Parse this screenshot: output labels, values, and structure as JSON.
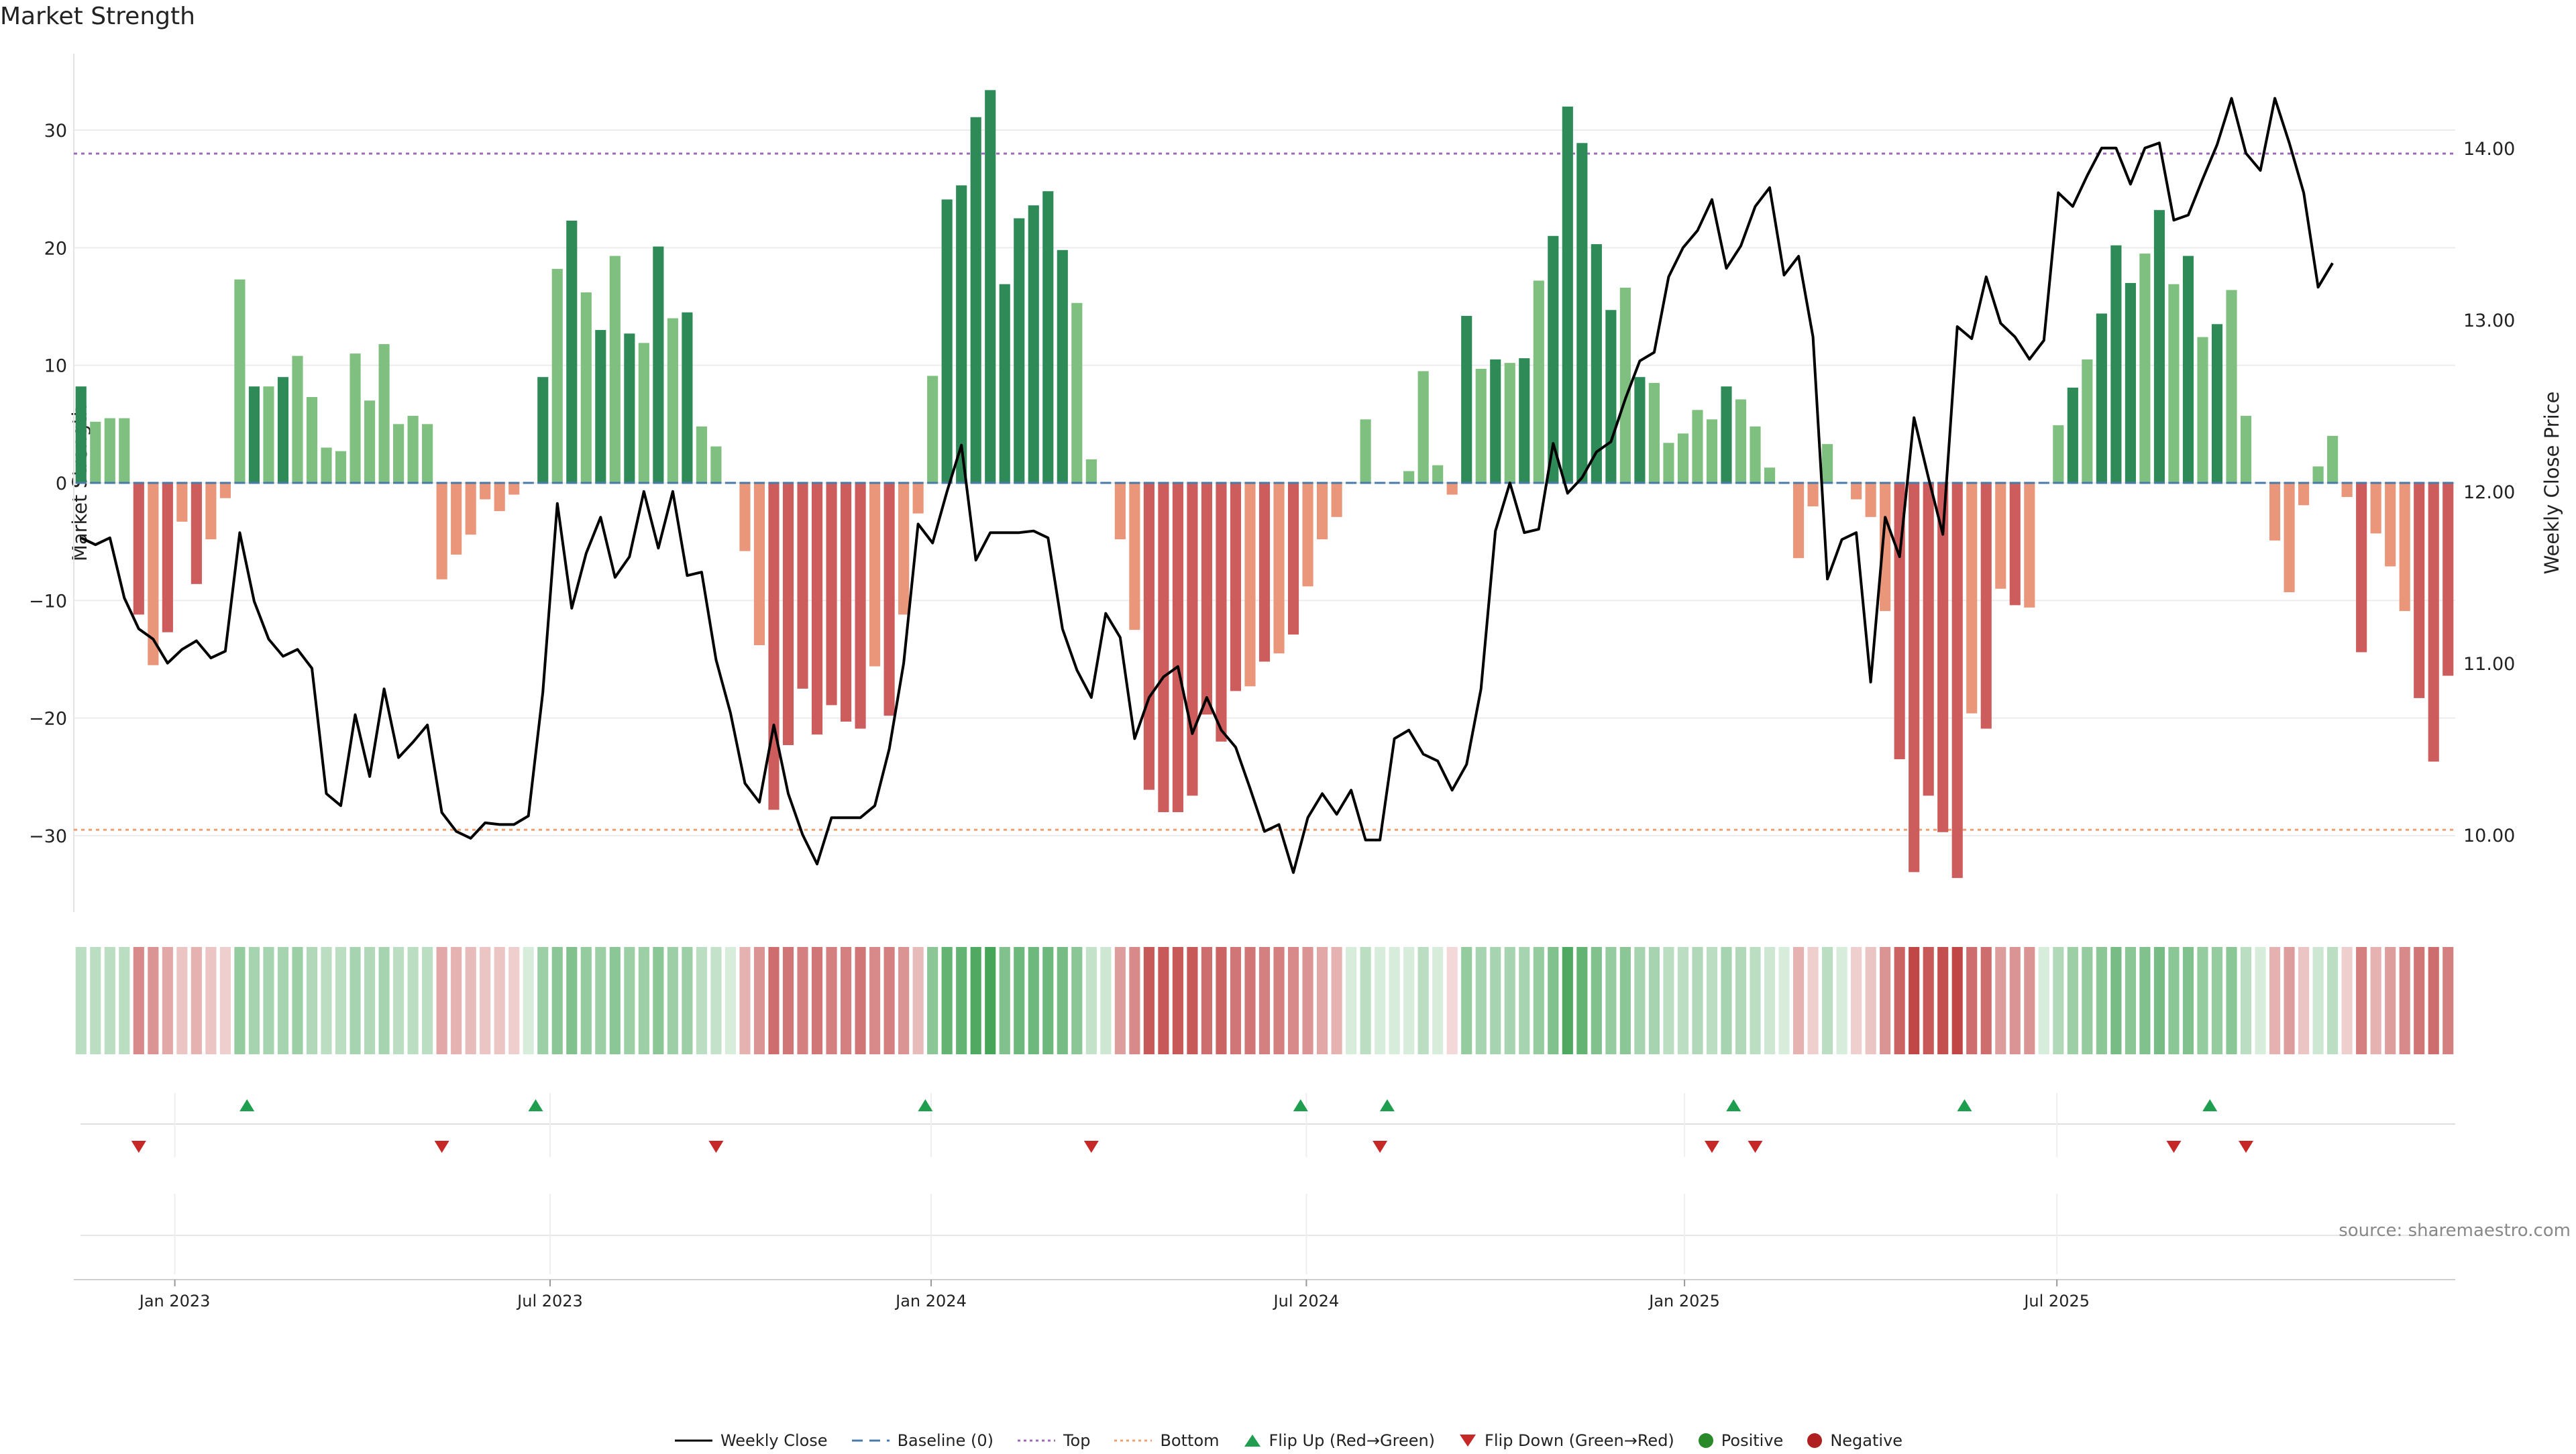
{
  "chart_data": {
    "type": "bar",
    "title": "Market Strength",
    "ylabel_left": "Market Strength",
    "ylabel_right": "Weekly Close Price",
    "ylim_left": [
      -36.5,
      36.5
    ],
    "ylim_right": [
      9.55,
      14.55
    ],
    "yticks_left": [
      30,
      20,
      10,
      0,
      -10,
      -20,
      -30
    ],
    "ytick_labels_left": [
      "30",
      "20",
      "10",
      "0",
      "−10",
      "−20",
      "−30"
    ],
    "yticks_right": [
      14,
      13,
      12,
      11,
      10
    ],
    "ytick_labels_right": [
      "14.00",
      "13.00",
      "12.00",
      "11.00",
      "10.00"
    ],
    "x_tick_labels": [
      "Jan 2023",
      "Jul 2023",
      "Jan 2024",
      "Jul 2024",
      "Jan 2025",
      "Jul 2025"
    ],
    "x_tick_weeks": [
      7,
      33,
      59.4,
      85.4,
      111.6,
      137.4
    ],
    "top_line": 28,
    "bottom_line": -29.5,
    "strength": [
      8.2,
      5.2,
      5.5,
      5.5,
      -11.2,
      -15.5,
      -12.7,
      -3.3,
      -8.6,
      -4.8,
      -1.3,
      17.3,
      8.2,
      8.2,
      9.0,
      10.8,
      7.3,
      3.0,
      2.7,
      11.0,
      7.0,
      11.8,
      5.0,
      5.7,
      5.0,
      -8.2,
      -6.1,
      -4.4,
      -1.4,
      -2.4,
      -1.0,
      0,
      9.0,
      18.2,
      22.3,
      16.2,
      13.0,
      19.3,
      12.7,
      11.9,
      20.1,
      14.0,
      14.5,
      4.8,
      3.1,
      0,
      -5.8,
      -13.8,
      -27.8,
      -22.3,
      -17.5,
      -21.4,
      -18.9,
      -20.3,
      -20.9,
      -15.6,
      -19.8,
      -11.2,
      -2.6,
      9.1,
      24.1,
      25.3,
      31.1,
      33.4,
      16.9,
      22.5,
      23.6,
      24.8,
      19.8,
      15.3,
      2.0,
      0,
      -4.8,
      -12.5,
      -26.1,
      -28.0,
      -28.0,
      -26.6,
      -19.7,
      -22.0,
      -17.7,
      -17.3,
      -15.2,
      -14.5,
      -12.9,
      -8.8,
      -4.8,
      -2.9,
      0,
      5.4,
      0,
      0,
      1.0,
      9.5,
      1.5,
      -1.0,
      14.2,
      9.7,
      10.5,
      10.2,
      10.6,
      17.2,
      21.0,
      32.0,
      28.9,
      20.3,
      14.7,
      16.6,
      9.0,
      8.5,
      3.4,
      4.2,
      6.2,
      5.4,
      8.2,
      7.1,
      4.8,
      1.3,
      0,
      -6.4,
      -2.0,
      3.3,
      0,
      -1.4,
      -2.9,
      -10.9,
      -23.5,
      -33.1,
      -26.6,
      -29.7,
      -33.6,
      -19.6,
      -20.9,
      -9.0,
      -10.4,
      -10.6,
      0,
      4.9,
      8.1,
      10.5,
      14.4,
      20.2,
      17.0,
      19.5,
      23.2,
      16.9,
      19.3,
      12.4,
      13.5,
      16.4,
      5.7,
      0,
      -4.9,
      -9.3,
      -1.9,
      1.4,
      4.0,
      -1.2,
      -14.4,
      -4.3,
      -7.1,
      -10.9,
      -18.3,
      -23.7,
      -16.4
    ],
    "weekly_close": [
      11.73,
      11.69,
      11.73,
      11.38,
      11.2,
      11.14,
      11.0,
      11.08,
      11.13,
      11.03,
      11.07,
      11.76,
      11.36,
      11.14,
      11.04,
      11.08,
      10.97,
      10.24,
      10.17,
      10.7,
      10.34,
      10.85,
      10.45,
      10.54,
      10.64,
      10.13,
      10.02,
      9.98,
      10.07,
      10.06,
      10.06,
      10.11,
      10.83,
      11.93,
      11.32,
      11.64,
      11.85,
      11.5,
      11.62,
      12.0,
      11.67,
      12.0,
      11.51,
      11.53,
      11.02,
      10.71,
      10.3,
      10.19,
      10.64,
      10.24,
      10.0,
      9.83,
      10.1,
      10.1,
      10.1,
      10.17,
      10.5,
      11.0,
      11.81,
      11.7,
      12.0,
      12.27,
      11.6,
      11.76,
      11.76,
      11.76,
      11.77,
      11.73,
      11.2,
      10.96,
      10.8,
      11.29,
      11.15,
      10.56,
      10.8,
      10.92,
      10.98,
      10.59,
      10.8,
      10.61,
      10.51,
      10.27,
      10.02,
      10.06,
      9.78,
      10.1,
      10.24,
      10.12,
      10.26,
      9.97,
      9.97,
      10.56,
      10.61,
      10.47,
      10.43,
      10.26,
      10.41,
      10.85,
      11.77,
      12.05,
      11.76,
      11.78,
      12.28,
      11.99,
      12.08,
      12.23,
      12.29,
      12.54,
      12.76,
      12.81,
      13.25,
      13.42,
      13.52,
      13.7,
      13.3,
      13.43,
      13.66,
      13.77,
      13.26,
      13.37,
      12.9,
      11.49,
      11.72,
      11.76,
      10.89,
      11.85,
      11.62,
      12.43,
      12.08,
      11.75,
      12.96,
      12.89,
      13.25,
      12.98,
      12.9,
      12.77,
      12.88,
      13.74,
      13.66,
      13.84,
      14.0,
      14.0,
      13.79,
      14.0,
      14.03,
      13.58,
      13.61,
      13.82,
      14.02,
      14.29,
      13.97,
      13.87,
      14.29,
      14.03,
      13.74,
      13.19,
      13.33
    ],
    "flip_up_weeks": [
      11.5,
      31.5,
      58.5,
      84.5,
      90.5,
      114.5,
      130.5,
      147.5
    ],
    "flip_down_weeks": [
      4,
      25,
      44,
      70,
      90,
      113,
      116,
      145,
      150
    ],
    "heatmap_intensity": [
      0.35,
      0.35,
      0.35,
      0.35,
      0.6,
      0.55,
      0.45,
      0.3,
      0.4,
      0.3,
      0.25,
      0.55,
      0.45,
      0.45,
      0.45,
      0.5,
      0.4,
      0.35,
      0.35,
      0.45,
      0.4,
      0.45,
      0.35,
      0.35,
      0.35,
      0.45,
      0.4,
      0.35,
      0.3,
      0.3,
      0.25,
      0.2,
      0.5,
      0.6,
      0.65,
      0.55,
      0.5,
      0.6,
      0.5,
      0.5,
      0.6,
      0.5,
      0.5,
      0.35,
      0.3,
      0.2,
      0.4,
      0.55,
      0.75,
      0.7,
      0.65,
      0.7,
      0.65,
      0.65,
      0.7,
      0.6,
      0.65,
      0.55,
      0.35,
      0.6,
      0.8,
      0.8,
      0.9,
      0.95,
      0.65,
      0.75,
      0.75,
      0.75,
      0.7,
      0.6,
      0.3,
      0.25,
      0.5,
      0.6,
      0.85,
      0.85,
      0.85,
      0.85,
      0.75,
      0.8,
      0.7,
      0.7,
      0.65,
      0.65,
      0.6,
      0.55,
      0.45,
      0.4,
      0.2,
      0.35,
      0.2,
      0.2,
      0.2,
      0.35,
      0.2,
      0.2,
      0.55,
      0.45,
      0.45,
      0.45,
      0.45,
      0.55,
      0.65,
      0.9,
      0.8,
      0.65,
      0.55,
      0.6,
      0.45,
      0.45,
      0.35,
      0.35,
      0.4,
      0.35,
      0.45,
      0.4,
      0.35,
      0.25,
      0.2,
      0.4,
      0.25,
      0.35,
      0.2,
      0.25,
      0.3,
      0.55,
      0.8,
      0.95,
      0.85,
      0.9,
      0.95,
      0.75,
      0.75,
      0.5,
      0.55,
      0.55,
      0.2,
      0.4,
      0.5,
      0.55,
      0.6,
      0.7,
      0.6,
      0.65,
      0.7,
      0.6,
      0.65,
      0.55,
      0.55,
      0.6,
      0.35,
      0.2,
      0.4,
      0.5,
      0.3,
      0.25,
      0.35,
      0.25,
      0.65,
      0.4,
      0.5,
      0.6,
      0.7,
      0.75,
      0.65
    ]
  },
  "colors": {
    "pos_strong": "#2e8b57",
    "pos_weak": "#7fbf7f",
    "neg_strong": "#cd5c5c",
    "neg_weak": "#e9967a",
    "line": "#000000",
    "top": "#9e6ab8",
    "bottom": "#f0a070",
    "baseline": "#4a7ba8",
    "flip_up": "#1e9e4e",
    "flip_down": "#c62828",
    "positive": "#2a8a2a",
    "negative": "#b02020"
  },
  "source": "source: sharemaestro.com",
  "legend": {
    "weekly_close": "Weekly Close",
    "baseline": "Baseline (0)",
    "top": "Top",
    "bottom": "Bottom",
    "flip_up": "Flip Up (Red→Green)",
    "flip_down": "Flip Down (Green→Red)",
    "positive": "Positive",
    "negative": "Negative"
  }
}
